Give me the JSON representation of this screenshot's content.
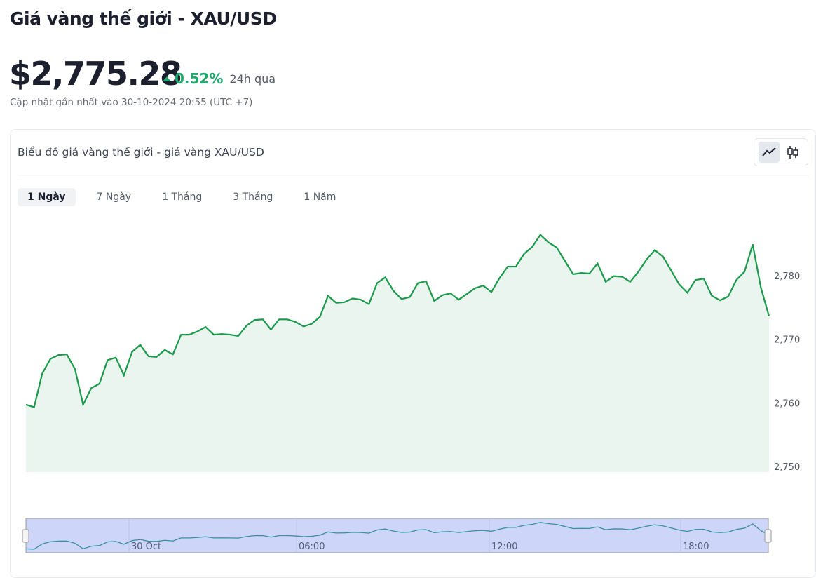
{
  "header": {
    "title": "Giá vàng thế giới - XAU/USD",
    "price": "$2,775.28",
    "change": "0.52%",
    "change_period": "24h qua",
    "updated": "Cập nhật gần nhất vào 30-10-2024 20:55 (UTC +7)"
  },
  "card": {
    "title": "Biểu đồ giá vàng thế giới - giá vàng XAU/USD",
    "tabs": [
      "1 Ngày",
      "7 Ngày",
      "1 Tháng",
      "3 Tháng",
      "1 Năm"
    ],
    "active_tab": 0
  },
  "colors": {
    "line": "#1a9a4a",
    "area": "#eaf5ef",
    "positive": "#1fa86b",
    "navigator": "#cdd6f8",
    "navline": "#3a8fa5"
  },
  "chart_data": {
    "type": "area",
    "title": "Biểu đồ giá vàng thế giới - giá vàng XAU/USD",
    "xlabel": "",
    "ylabel": "",
    "ylim": [
      2750,
      2790
    ],
    "yticks": [
      "2,750",
      "2,760",
      "2,770",
      "2,780"
    ],
    "ytick_values": [
      2750,
      2760,
      2770,
      2780
    ],
    "navigator_labels": [
      "30 Oct",
      "06:00",
      "12:00",
      "18:00"
    ],
    "values": [
      2760.6,
      2760.2,
      2765.5,
      2767.8,
      2768.4,
      2768.5,
      2766.2,
      2760.6,
      2763.2,
      2763.9,
      2767.6,
      2768.0,
      2765.2,
      2768.9,
      2770.0,
      2768.2,
      2768.1,
      2769.2,
      2768.5,
      2771.6,
      2771.6,
      2772.1,
      2772.8,
      2771.6,
      2771.7,
      2771.6,
      2771.4,
      2773.0,
      2773.9,
      2774.0,
      2772.4,
      2774.0,
      2774.0,
      2773.6,
      2772.9,
      2773.3,
      2774.4,
      2777.7,
      2776.6,
      2776.7,
      2777.3,
      2777.1,
      2776.4,
      2779.7,
      2780.6,
      2778.5,
      2777.2,
      2777.5,
      2779.7,
      2780.0,
      2776.9,
      2777.8,
      2778.1,
      2777.1,
      2778.0,
      2778.9,
      2779.3,
      2778.3,
      2780.5,
      2782.3,
      2782.3,
      2784.3,
      2785.4,
      2787.3,
      2786.1,
      2785.3,
      2783.2,
      2781.1,
      2781.3,
      2781.2,
      2782.8,
      2779.9,
      2780.8,
      2780.7,
      2779.9,
      2781.5,
      2783.4,
      2784.9,
      2783.9,
      2781.7,
      2779.5,
      2778.2,
      2780.2,
      2780.4,
      2777.7,
      2777.0,
      2777.6,
      2780.2,
      2781.5,
      2785.8,
      2779.0,
      2774.5
    ]
  }
}
